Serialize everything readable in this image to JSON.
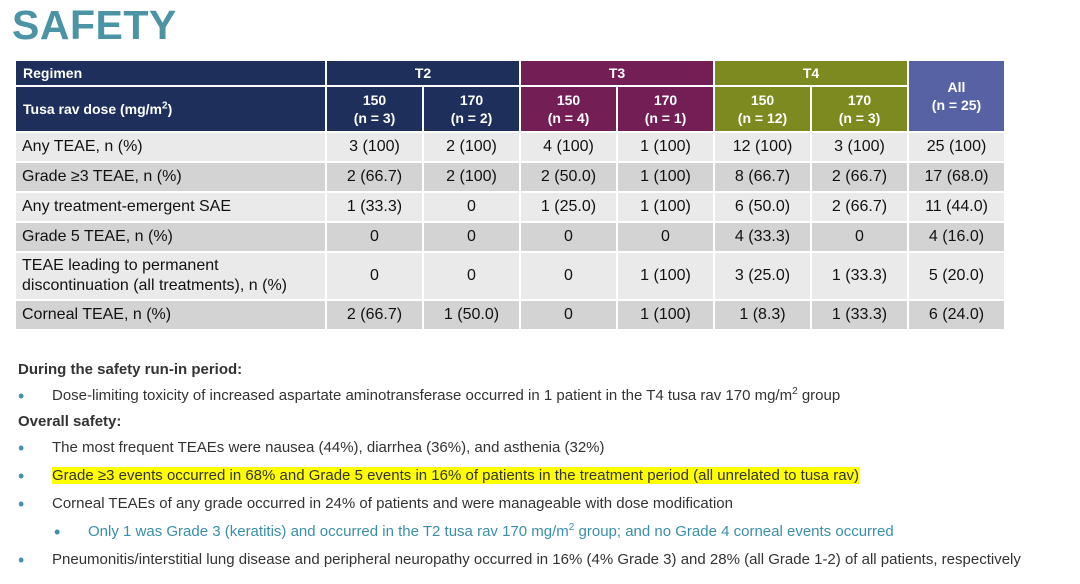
{
  "title": "SAFETY",
  "table": {
    "regimen_label": "Regimen",
    "dose_label": "Tusa rav dose (mg/m",
    "dose_label_sup": "2",
    "dose_label_end": ")",
    "groups": [
      {
        "name": "T2",
        "color": "#1f2f5c"
      },
      {
        "name": "T3",
        "color": "#731f56"
      },
      {
        "name": "T4",
        "color": "#7d8a1f"
      }
    ],
    "columns": [
      {
        "dose": "150",
        "n": "(n = 3)"
      },
      {
        "dose": "170",
        "n": "(n = 2)"
      },
      {
        "dose": "150",
        "n": "(n = 4)"
      },
      {
        "dose": "170",
        "n": "(n = 1)"
      },
      {
        "dose": "150",
        "n": "(n = 12)"
      },
      {
        "dose": "170",
        "n": "(n = 3)"
      },
      {
        "dose": "All",
        "n": "(n = 25)"
      }
    ],
    "rows": [
      {
        "label": "Any TEAE, n (%)",
        "values": [
          "3 (100)",
          "2 (100)",
          "4 (100)",
          "1 (100)",
          "12 (100)",
          "3 (100)",
          "25 (100)"
        ]
      },
      {
        "label": "Grade ≥3 TEAE, n (%)",
        "values": [
          "2 (66.7)",
          "2 (100)",
          "2 (50.0)",
          "1 (100)",
          "8 (66.7)",
          "2 (66.7)",
          "17 (68.0)"
        ]
      },
      {
        "label": "Any treatment-emergent SAE",
        "values": [
          "1 (33.3)",
          "0",
          "1 (25.0)",
          "1 (100)",
          "6 (50.0)",
          "2 (66.7)",
          "11 (44.0)"
        ]
      },
      {
        "label": "Grade 5 TEAE, n (%)",
        "values": [
          "0",
          "0",
          "0",
          "0",
          "4 (33.3)",
          "0",
          "4 (16.0)"
        ]
      },
      {
        "label": "TEAE leading to permanent discontinuation (all treatments), n (%)",
        "values": [
          "0",
          "0",
          "0",
          "1 (100)",
          "3 (25.0)",
          "1 (33.3)",
          "5 (20.0)"
        ]
      },
      {
        "label": "Corneal TEAE, n (%)",
        "values": [
          "2 (66.7)",
          "1 (50.0)",
          "0",
          "1 (100)",
          "1 (8.3)",
          "1 (33.3)",
          "6 (24.0)"
        ]
      }
    ]
  },
  "notes": {
    "runin_heading": "During the safety run-in period:",
    "runin_bullet_a": "Dose-limiting toxicity of increased aspartate aminotransferase occurred in 1 patient in the T4 tusa rav 170 mg/m",
    "runin_bullet_sup": "2",
    "runin_bullet_b": " group",
    "overall_heading": "Overall safety:",
    "b1": "The most frequent TEAEs were nausea (44%), diarrhea (36%), and asthenia (32%)",
    "b2": "Grade ≥3 events occurred in 68% and Grade 5 events in 16% of patients in the treatment period (all unrelated to tusa rav)",
    "b3": "Corneal TEAEs of any grade occurred in 24% of patients and were manageable with dose modification",
    "b3_sub_a": "Only 1 was Grade 3 (keratitis) and occurred in the T2 tusa rav 170 mg/m",
    "b3_sub_sup": "2",
    "b3_sub_b": " group; and no Grade 4 corneal events occurred",
    "b4": "Pneumonitis/interstitial lung disease and peripheral neuropathy occurred in 16% (4% Grade 3) and 28% (all Grade 1-2) of all patients, respectively",
    "highlight_color": "#ffff00"
  }
}
